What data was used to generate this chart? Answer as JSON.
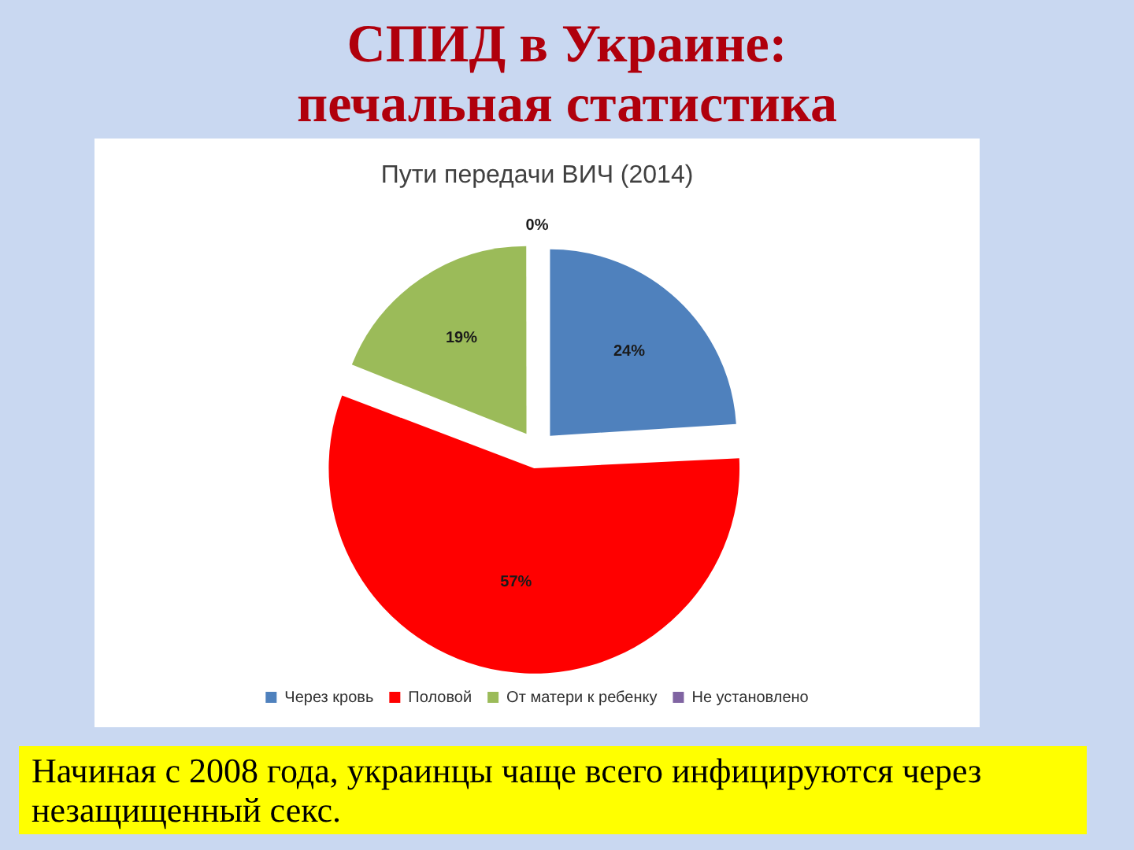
{
  "chart_data": {
    "type": "pie",
    "title": "СПИД в Украине: печальная статистика",
    "subtitle": "Пути передачи ВИЧ (2014)",
    "categories": [
      "Через кровь",
      "Половой",
      "От матери к ребенку",
      "Не установлено"
    ],
    "values": [
      24,
      57,
      19,
      0
    ],
    "colors": [
      "#4f81bd",
      "#ff0000",
      "#9bbb59",
      "#8064a2"
    ],
    "value_labels": [
      "24%",
      "57%",
      "19%",
      "0%"
    ],
    "legend": "bottom",
    "annotations": [
      "Начиная с 2008 года, украинцы чаще всего инфицируются через незащищенный секс."
    ]
  }
}
